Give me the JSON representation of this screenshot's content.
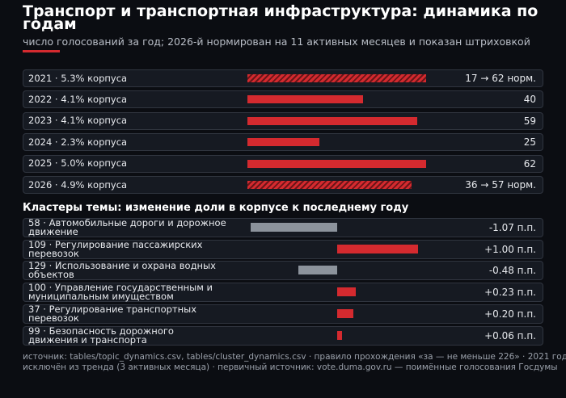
{
  "title": "Транспорт и транспортная инфраструктура: динамика по годам",
  "subtitle": "число голосований за год; 2026-й нормирован на 11 активных месяцев и показан штриховкой",
  "footer": [
    "источник: tables/topic_dynamics.csv, tables/cluster_dynamics.csv · правило прохождения «за — не меньше 226» · 2021 год",
    "исключён из тренда (3 активных месяца) · первичный источник: vote.duma.gov.ru — поимённые голосования Госдумы"
  ],
  "chart_data": [
    {
      "type": "bar",
      "orientation": "horizontal",
      "color": "#d42a2f",
      "categories": [
        "2021 · 5.3% корпуса",
        "2022 · 4.1% корпуса",
        "2023 · 4.1% корпуса",
        "2024 · 2.3% корпуса",
        "2025 · 5.0% корпуса",
        "2026 · 4.9% корпуса"
      ],
      "values": [
        62,
        40,
        59,
        25,
        62,
        57
      ],
      "value_labels": [
        "17 → 62 норм.",
        "40",
        "59",
        "25",
        "62",
        "36 → 57 норм."
      ],
      "hatched": [
        true,
        false,
        false,
        false,
        false,
        true
      ],
      "xlim": [
        0,
        62
      ]
    },
    {
      "type": "diverging-bar",
      "title": "Кластеры темы: изменение доли в корпусе к последнему году",
      "positive_color": "#d42a2f",
      "negative_color": "#8c939c",
      "categories": [
        "58 · Автомобильные дороги и дорожное движение",
        "109 · Регулирование пассажирских перевозок",
        "129 · Использование и охрана водных объектов",
        "100 · Управление государственным и муниципальным имуществом",
        "37 · Регулирование транспортных перевозок",
        "99 · Безопасность дорожного движения и транспорта"
      ],
      "values": [
        -1.07,
        1.0,
        -0.48,
        0.23,
        0.2,
        0.06
      ],
      "value_labels": [
        "-1.07 п.п.",
        "+1.00 п.п.",
        "-0.48 п.п.",
        "+0.23 п.п.",
        "+0.20 п.п.",
        "+0.06 п.п."
      ],
      "xlim": [
        -1.1,
        1.1
      ]
    }
  ]
}
